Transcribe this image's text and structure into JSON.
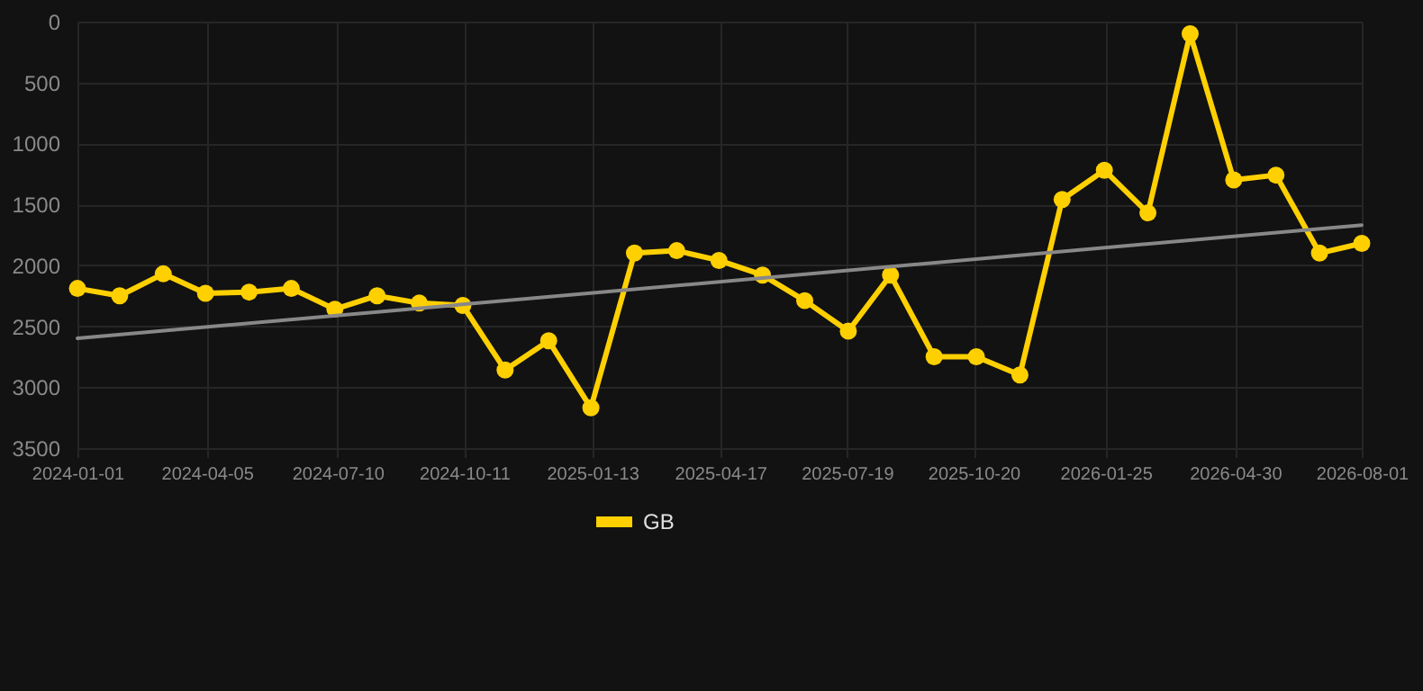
{
  "chart_data": {
    "type": "line",
    "x": [
      "2024-01-01",
      "2024-02-01",
      "2024-03-04",
      "2024-04-04",
      "2024-05-06",
      "2024-06-06",
      "2024-07-08",
      "2024-08-08",
      "2024-09-08",
      "2024-10-10",
      "2024-11-10",
      "2024-12-12",
      "2025-01-12",
      "2025-02-13",
      "2025-03-16",
      "2025-04-16",
      "2025-05-18",
      "2025-06-18",
      "2025-07-20",
      "2025-08-20",
      "2025-09-21",
      "2025-10-22",
      "2025-11-23",
      "2025-12-24",
      "2026-01-24",
      "2026-02-25",
      "2026-03-28",
      "2026-04-29",
      "2026-05-30",
      "2026-07-01",
      "2026-08-01"
    ],
    "series": [
      {
        "name": "GB",
        "color": "#ffd000",
        "marker": "circle",
        "values": [
          2190,
          2250,
          2070,
          2230,
          2220,
          2190,
          2360,
          2250,
          2310,
          2330,
          2860,
          2620,
          3170,
          1900,
          1880,
          1960,
          2080,
          2290,
          2540,
          2080,
          2750,
          2750,
          2900,
          1460,
          1220,
          1570,
          100,
          1300,
          1260,
          1900,
          1820
        ]
      },
      {
        "type": "line",
        "color": "#888888",
        "marker": "none",
        "x": [
          "2024-01-01",
          "2026-08-01"
        ],
        "values": [
          2600,
          1670
        ]
      }
    ],
    "xlim": [
      "2024-01-01",
      "2026-08-01"
    ],
    "xticks": [
      "2024-01-01",
      "2024-04-05",
      "2024-07-10",
      "2024-10-11",
      "2025-01-13",
      "2025-04-17",
      "2025-07-19",
      "2025-10-20",
      "2026-01-25",
      "2026-04-30",
      "2026-08-01"
    ],
    "ylim": [
      3500,
      0
    ],
    "yticks": [
      0,
      500,
      1000,
      1500,
      2000,
      2500,
      3000,
      3500
    ],
    "grid": true,
    "legend": "bottom",
    "line_style": "solid"
  }
}
